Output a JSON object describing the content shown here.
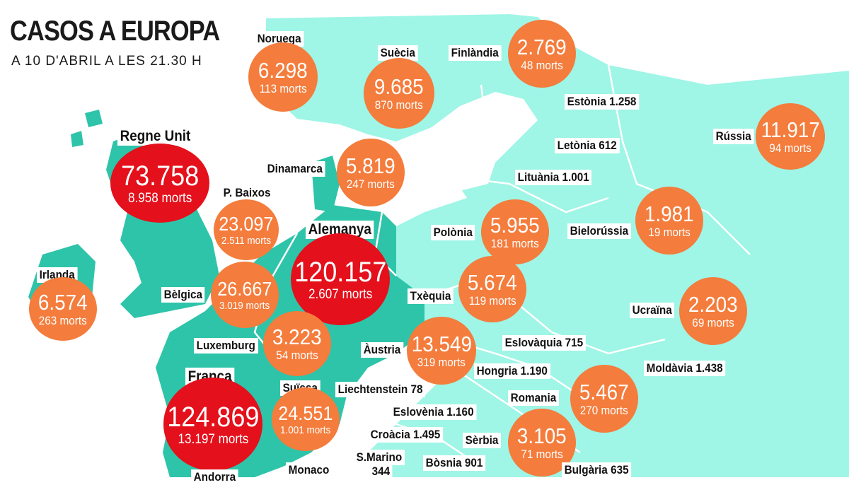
{
  "title": "CASOS A EUROPA",
  "subtitle": "A 10 D'ABRIL A LES 21.30 H",
  "colors": {
    "land_east": "#9ff5e6",
    "land_west": "#2ec4a9",
    "border": "#ffffff",
    "bubble": "#f47c3c",
    "bubble_major": "#e4101b",
    "label_bg": "#ffffff"
  },
  "countries": {
    "noruega": {
      "name": "Noruega",
      "cases": "6.298",
      "deaths": "113 morts"
    },
    "suecia": {
      "name": "Suècia",
      "cases": "9.685",
      "deaths": "870 morts"
    },
    "finlandia": {
      "name": "Finlàndia",
      "cases": "2.769",
      "deaths": "48 morts"
    },
    "regne_unit": {
      "name": "Regne Unit",
      "cases": "73.758",
      "deaths": "8.958 morts"
    },
    "russia": {
      "name": "Rússia",
      "cases": "11.917",
      "deaths": "94 morts"
    },
    "dinamarca": {
      "name": "Dinamarca",
      "cases": "5.819",
      "deaths": "247 morts"
    },
    "p_baixos": {
      "name": "P. Baixos",
      "cases": "23.097",
      "deaths": "2.511 morts"
    },
    "alemanya": {
      "name": "Alemanya",
      "cases": "120.157",
      "deaths": "2.607 morts"
    },
    "polonia": {
      "name": "Polònia",
      "cases": "5.955",
      "deaths": "181 morts"
    },
    "bielorussia": {
      "name": "Bielorússia",
      "cases": "1.981",
      "deaths": "19 morts"
    },
    "irlanda": {
      "name": "Irlanda",
      "cases": "6.574",
      "deaths": "263 morts"
    },
    "belgica": {
      "name": "Bèlgica",
      "cases": "26.667",
      "deaths": "3.019 morts"
    },
    "txequia": {
      "name": "Txèquia",
      "cases": "5.674",
      "deaths": "119 morts"
    },
    "ucraina": {
      "name": "Ucraïna",
      "cases": "2.203",
      "deaths": "69 morts"
    },
    "luxemburg": {
      "name": "Luxemburg",
      "cases": "3.223",
      "deaths": "54 morts"
    },
    "austria": {
      "name": "Àustria",
      "cases": "13.549",
      "deaths": "319 morts"
    },
    "franca": {
      "name": "França",
      "cases": "124.869",
      "deaths": "13.197 morts"
    },
    "suissa": {
      "name": "Suïssa",
      "cases": "24.551",
      "deaths": "1.001 morts"
    },
    "romania": {
      "name": "Romania",
      "cases": "5.467",
      "deaths": "270 morts"
    },
    "serbia": {
      "name": "Sèrbia",
      "cases": "3.105",
      "deaths": "71 morts"
    }
  },
  "small_labels": {
    "estonia": "Estònia 1.258",
    "letonia": "Letònia 612",
    "lituania": "Lituània 1.001",
    "eslovaquia": "Eslovàquia 715",
    "hongria": "Hongria 1.190",
    "moldavia": "Moldàvia 1.438",
    "liechtenstein": "Liechtenstein 78",
    "eslovenia": "Eslovènia 1.160",
    "croacia": "Croàcia 1.495",
    "smarino": "S.Marino",
    "smarino_cases": "344",
    "bosnia": "Bòsnia 901",
    "monaco": "Monaco",
    "bulgaria": "Bulgària 635",
    "andorra": "Andorra"
  }
}
